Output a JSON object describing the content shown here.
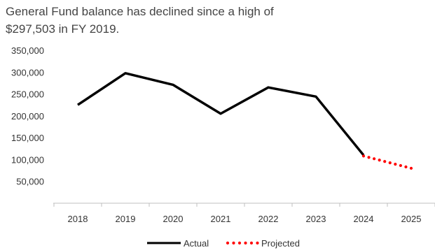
{
  "chart_data": {
    "type": "line",
    "title_lines": [
      "General Fund balance has declined since a high of",
      "$297,503 in FY 2019."
    ],
    "x": [
      "2018",
      "2019",
      "2020",
      "2021",
      "2022",
      "2023",
      "2024",
      "2025"
    ],
    "y_ticks": [
      "50,000",
      "100,000",
      "150,000",
      "200,000",
      "250,000",
      "300,000",
      "350,000"
    ],
    "y_tick_values": [
      50000,
      100000,
      150000,
      200000,
      250000,
      300000,
      350000
    ],
    "ylim": [
      0,
      350000
    ],
    "grid": false,
    "legend_position": "bottom",
    "series": [
      {
        "name": "Actual",
        "color": "#000000",
        "style": "solid",
        "x": [
          "2018",
          "2019",
          "2020",
          "2021",
          "2022",
          "2023",
          "2024"
        ],
        "values": [
          225000,
          297503,
          271000,
          205000,
          265000,
          244000,
          110000
        ]
      },
      {
        "name": "Projected",
        "color": "#ff0000",
        "style": "dotted",
        "x": [
          "2024",
          "2025"
        ],
        "values": [
          108000,
          80000
        ]
      }
    ]
  }
}
